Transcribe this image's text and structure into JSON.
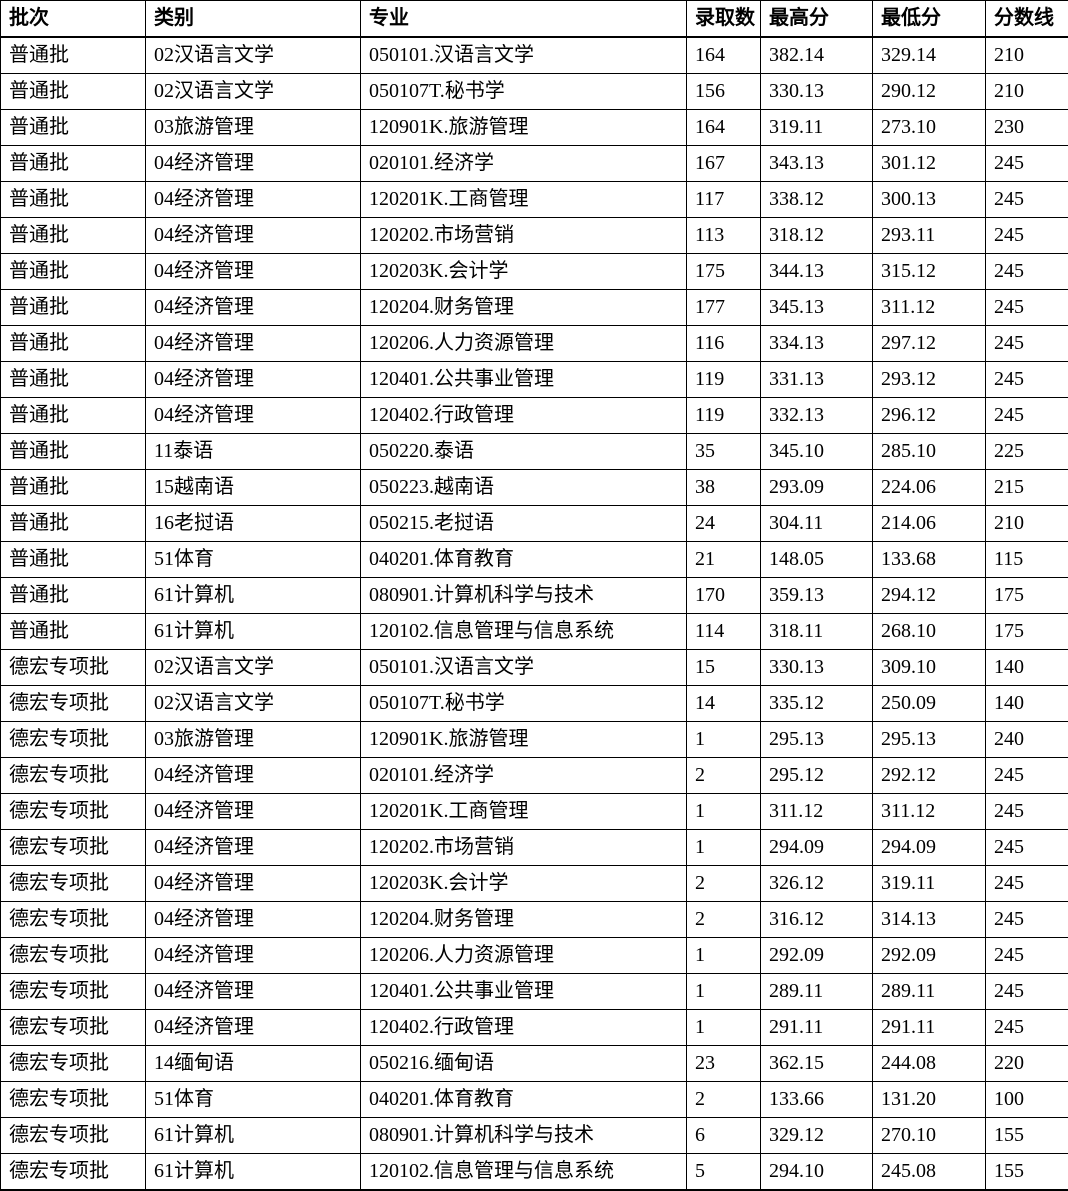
{
  "table": {
    "columns": [
      "批次",
      "类别",
      "专业",
      "录取数",
      "最高分",
      "最低分",
      "分数线"
    ],
    "column_keys": [
      "batch",
      "category",
      "major",
      "admitted-count",
      "max-score",
      "min-score",
      "cutoff-line"
    ],
    "rows": [
      [
        "普通批",
        "02汉语言文学",
        "050101.汉语言文学",
        "164",
        "382.14",
        "329.14",
        "210"
      ],
      [
        "普通批",
        "02汉语言文学",
        "050107T.秘书学",
        "156",
        "330.13",
        "290.12",
        "210"
      ],
      [
        "普通批",
        "03旅游管理",
        "120901K.旅游管理",
        "164",
        "319.11",
        "273.10",
        "230"
      ],
      [
        "普通批",
        "04经济管理",
        "020101.经济学",
        "167",
        "343.13",
        "301.12",
        "245"
      ],
      [
        "普通批",
        "04经济管理",
        "120201K.工商管理",
        "117",
        "338.12",
        "300.13",
        "245"
      ],
      [
        "普通批",
        "04经济管理",
        "120202.市场营销",
        "113",
        "318.12",
        "293.11",
        "245"
      ],
      [
        "普通批",
        "04经济管理",
        "120203K.会计学",
        "175",
        "344.13",
        "315.12",
        "245"
      ],
      [
        "普通批",
        "04经济管理",
        "120204.财务管理",
        "177",
        "345.13",
        "311.12",
        "245"
      ],
      [
        "普通批",
        "04经济管理",
        "120206.人力资源管理",
        "116",
        "334.13",
        "297.12",
        "245"
      ],
      [
        "普通批",
        "04经济管理",
        "120401.公共事业管理",
        "119",
        "331.13",
        "293.12",
        "245"
      ],
      [
        "普通批",
        "04经济管理",
        "120402.行政管理",
        "119",
        "332.13",
        "296.12",
        "245"
      ],
      [
        "普通批",
        "11泰语",
        "050220.泰语",
        "35",
        "345.10",
        "285.10",
        "225"
      ],
      [
        "普通批",
        "15越南语",
        "050223.越南语",
        "38",
        "293.09",
        "224.06",
        "215"
      ],
      [
        "普通批",
        "16老挝语",
        "050215.老挝语",
        "24",
        "304.11",
        "214.06",
        "210"
      ],
      [
        "普通批",
        "51体育",
        "040201.体育教育",
        "21",
        "148.05",
        "133.68",
        "115"
      ],
      [
        "普通批",
        "61计算机",
        "080901.计算机科学与技术",
        "170",
        "359.13",
        "294.12",
        "175"
      ],
      [
        "普通批",
        "61计算机",
        "120102.信息管理与信息系统",
        "114",
        "318.11",
        "268.10",
        "175"
      ],
      [
        "德宏专项批",
        "02汉语言文学",
        "050101.汉语言文学",
        "15",
        "330.13",
        "309.10",
        "140"
      ],
      [
        "德宏专项批",
        "02汉语言文学",
        "050107T.秘书学",
        "14",
        "335.12",
        "250.09",
        "140"
      ],
      [
        "德宏专项批",
        "03旅游管理",
        "120901K.旅游管理",
        "1",
        "295.13",
        "295.13",
        "240"
      ],
      [
        "德宏专项批",
        "04经济管理",
        "020101.经济学",
        "2",
        "295.12",
        "292.12",
        "245"
      ],
      [
        "德宏专项批",
        "04经济管理",
        "120201K.工商管理",
        "1",
        "311.12",
        "311.12",
        "245"
      ],
      [
        "德宏专项批",
        "04经济管理",
        "120202.市场营销",
        "1",
        "294.09",
        "294.09",
        "245"
      ],
      [
        "德宏专项批",
        "04经济管理",
        "120203K.会计学",
        "2",
        "326.12",
        "319.11",
        "245"
      ],
      [
        "德宏专项批",
        "04经济管理",
        "120204.财务管理",
        "2",
        "316.12",
        "314.13",
        "245"
      ],
      [
        "德宏专项批",
        "04经济管理",
        "120206.人力资源管理",
        "1",
        "292.09",
        "292.09",
        "245"
      ],
      [
        "德宏专项批",
        "04经济管理",
        "120401.公共事业管理",
        "1",
        "289.11",
        "289.11",
        "245"
      ],
      [
        "德宏专项批",
        "04经济管理",
        "120402.行政管理",
        "1",
        "291.11",
        "291.11",
        "245"
      ],
      [
        "德宏专项批",
        "14缅甸语",
        "050216.缅甸语",
        "23",
        "362.15",
        "244.08",
        "220"
      ],
      [
        "德宏专项批",
        "51体育",
        "040201.体育教育",
        "2",
        "133.66",
        "131.20",
        "100"
      ],
      [
        "德宏专项批",
        "61计算机",
        "080901.计算机科学与技术",
        "6",
        "329.12",
        "270.10",
        "155"
      ],
      [
        "德宏专项批",
        "61计算机",
        "120102.信息管理与信息系统",
        "5",
        "294.10",
        "245.08",
        "155"
      ]
    ],
    "text_color": "#000000",
    "border_color": "#000000",
    "background_color": "#ffffff"
  }
}
